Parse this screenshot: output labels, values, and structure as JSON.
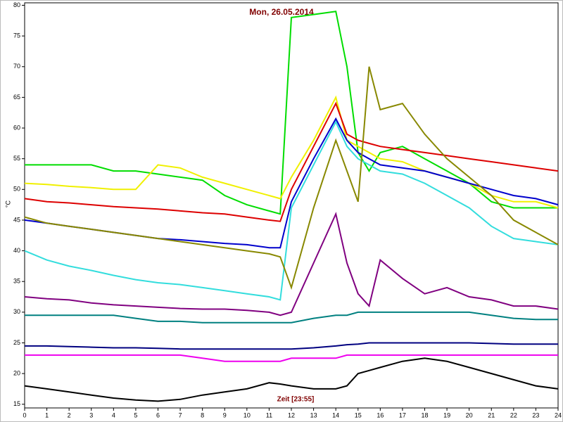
{
  "chart_data": {
    "type": "line",
    "title": "Mon, 26.05.2014",
    "xlabel": "Zeit [23:55]",
    "ylabel": "°C",
    "x": [
      0,
      1,
      2,
      3,
      4,
      5,
      6,
      7,
      8,
      9,
      10,
      11,
      11.5,
      12,
      13,
      14,
      14.5,
      15,
      15.5,
      16,
      17,
      18,
      19,
      20,
      21,
      22,
      23,
      24
    ],
    "xlim": [
      0,
      24
    ],
    "xticks": [
      0,
      1,
      2,
      3,
      4,
      5,
      6,
      7,
      8,
      9,
      10,
      11,
      12,
      13,
      14,
      15,
      16,
      17,
      18,
      19,
      20,
      21,
      22,
      23,
      24
    ],
    "ylim": [
      14.4,
      80.4
    ],
    "yticks": [
      15,
      20,
      25,
      30,
      35,
      40,
      45,
      50,
      55,
      60,
      65,
      70,
      75,
      80
    ],
    "series": [
      {
        "color": "#00dd00",
        "values": [
          54,
          54,
          54,
          54,
          53,
          53,
          52.5,
          52,
          51.5,
          49,
          47.5,
          46.5,
          46,
          78,
          78.5,
          79,
          70,
          56,
          53,
          56,
          57,
          55,
          53,
          51,
          48,
          47,
          47,
          47
        ]
      },
      {
        "color": "#f0f000",
        "values": [
          51,
          50.8,
          50.5,
          50.3,
          50,
          50,
          54,
          53.5,
          52,
          51,
          50,
          49,
          48.5,
          52,
          58,
          65,
          58,
          57,
          56,
          55,
          54.5,
          53,
          52,
          51,
          49,
          48,
          48,
          47
        ]
      },
      {
        "color": "#dd0000",
        "values": [
          48.5,
          48,
          47.8,
          47.5,
          47.2,
          47,
          46.8,
          46.5,
          46.2,
          46,
          45.5,
          45,
          44.8,
          50,
          57,
          64,
          59,
          58,
          57.5,
          57,
          56.5,
          56,
          55.5,
          55,
          54.5,
          54,
          53.5,
          53
        ]
      },
      {
        "color": "#0000cc",
        "values": [
          45,
          44.5,
          44,
          43.5,
          43,
          42.5,
          42,
          41.8,
          41.5,
          41.2,
          41,
          40.5,
          40.5,
          48,
          55,
          61.5,
          58,
          56,
          55,
          54,
          53.5,
          53,
          52,
          51,
          50,
          49,
          48.5,
          47.5
        ]
      },
      {
        "color": "#33dddd",
        "values": [
          40,
          38.5,
          37.5,
          36.8,
          36,
          35.3,
          34.8,
          34.5,
          34,
          33.5,
          33,
          32.5,
          32,
          47,
          54,
          61,
          57,
          55,
          54,
          53,
          52.5,
          51,
          49,
          47,
          44,
          42,
          41.5,
          41
        ]
      },
      {
        "color": "#888800",
        "values": [
          45.5,
          44.5,
          44,
          43.5,
          43,
          42.5,
          42,
          41.5,
          41,
          40.5,
          40,
          39.5,
          39,
          34,
          47,
          58,
          53,
          48,
          70,
          63,
          64,
          59,
          55,
          52,
          49,
          45,
          43,
          41
        ]
      },
      {
        "color": "#800080",
        "values": [
          32.5,
          32.2,
          32,
          31.5,
          31.2,
          31,
          30.8,
          30.6,
          30.5,
          30.5,
          30.3,
          30,
          29.5,
          30,
          38,
          46,
          38,
          33,
          31,
          38.5,
          35.5,
          33,
          34,
          32.5,
          32,
          31,
          31,
          30.5
        ]
      },
      {
        "color": "#008080",
        "values": [
          29.5,
          29.5,
          29.5,
          29.5,
          29.5,
          29,
          28.5,
          28.5,
          28.3,
          28.3,
          28.3,
          28.3,
          28.3,
          28.3,
          29,
          29.5,
          29.5,
          30,
          30,
          30,
          30,
          30,
          30,
          30,
          29.5,
          29,
          28.8,
          28.8
        ]
      },
      {
        "color": "#000080",
        "values": [
          24.5,
          24.5,
          24.4,
          24.3,
          24.2,
          24.2,
          24.1,
          24,
          24,
          24,
          24,
          24,
          24,
          24,
          24.2,
          24.5,
          24.7,
          24.8,
          25,
          25,
          25,
          25,
          25,
          25,
          24.9,
          24.8,
          24.8,
          24.8
        ]
      },
      {
        "color": "#ee00ee",
        "values": [
          23,
          23,
          23,
          23,
          23,
          23,
          23,
          23,
          22.5,
          22,
          22,
          22,
          22,
          22.5,
          22.5,
          22.5,
          23,
          23,
          23,
          23,
          23,
          23,
          23,
          23,
          23,
          23,
          23,
          23
        ]
      },
      {
        "color": "#000000",
        "values": [
          18,
          17.5,
          17,
          16.5,
          16,
          15.7,
          15.5,
          15.8,
          16.5,
          17,
          17.5,
          18.5,
          18.3,
          18,
          17.5,
          17.5,
          18,
          20,
          20.5,
          21,
          22,
          22.5,
          22,
          21,
          20,
          19,
          18,
          17.5
        ]
      }
    ]
  }
}
